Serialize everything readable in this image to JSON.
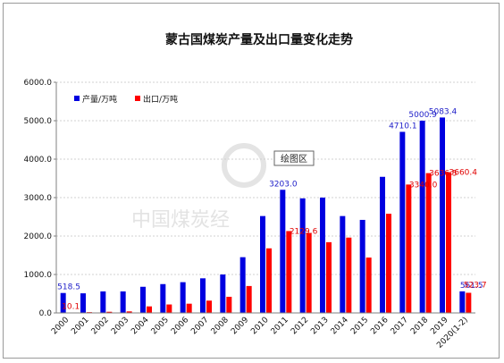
{
  "chart_data": {
    "type": "bar",
    "title": "蒙古国煤炭产量及出口量变化走势",
    "categories": [
      "2000",
      "2001",
      "2002",
      "2003",
      "2004",
      "2005",
      "2006",
      "2007",
      "2008",
      "2009",
      "2010",
      "2011",
      "2012",
      "2013",
      "2014",
      "2015",
      "2016",
      "2017",
      "2018",
      "2019",
      "2020(1-2)"
    ],
    "series": [
      {
        "name": "产量/万吨",
        "color": "#0000e0",
        "values": [
          518.5,
          510,
          560,
          560,
          680,
          750,
          800,
          900,
          1000,
          1450,
          2520,
          3203.0,
          2980,
          3000,
          2520,
          2420,
          3540,
          4710.1,
          5000.9,
          5083.4,
          561.5
        ]
      },
      {
        "name": "出口/万吨",
        "color": "#ff0000",
        "values": [
          10.1,
          20,
          30,
          40,
          170,
          220,
          240,
          320,
          420,
          700,
          1680,
          2129.6,
          2080,
          1840,
          1960,
          1440,
          2580,
          3340.0,
          3636.5,
          3660.4,
          523.7
        ]
      }
    ],
    "data_labels": {
      "blue": {
        "0": "518.5",
        "11": "3203.0",
        "17": "4710.1",
        "18": "5000.9",
        "19": "5083.4",
        "20": "561.5"
      },
      "red": {
        "0": "10.1",
        "11": "2129.6",
        "17": "3340.0",
        "18": "3636.5",
        "19": "3660.4",
        "20": "523.7"
      }
    },
    "y_ticks": [
      "0.0",
      "1000.0",
      "2000.0",
      "3000.0",
      "4000.0",
      "5000.0",
      "6000.0"
    ],
    "ylim": [
      0,
      6000
    ],
    "grid": true,
    "legend_position": "top-left",
    "plot_area_label": "绘图区",
    "watermark": "中国煤炭经"
  }
}
